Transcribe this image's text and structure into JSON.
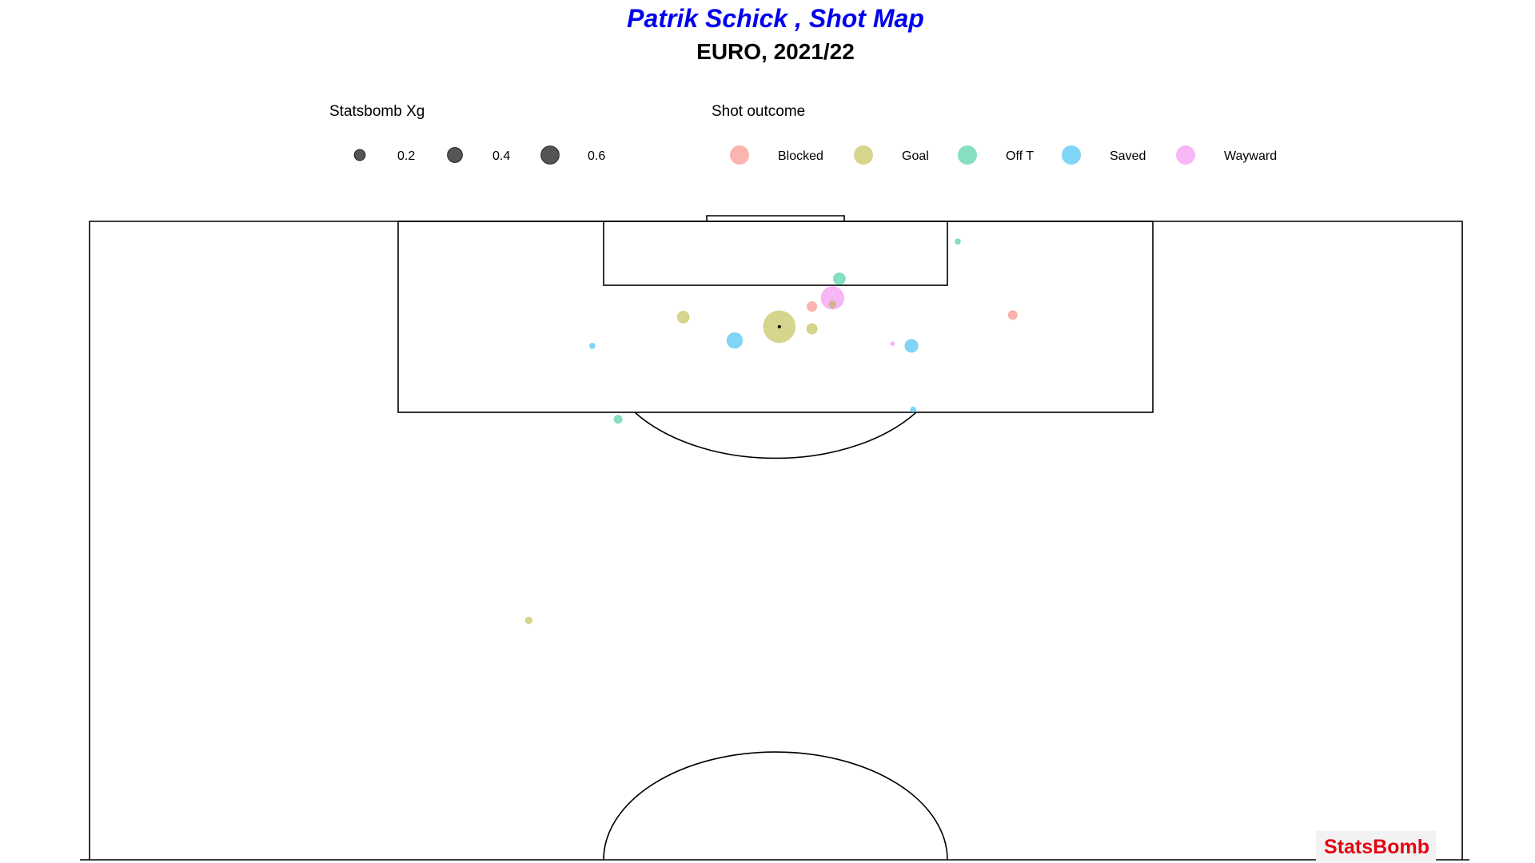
{
  "colors": {
    "title": "#0000ee",
    "brand": "#e30613",
    "size_legend": "#555555",
    "Blocked": "#f8766d",
    "Goal": "#b5b330",
    "Off T": "#23c48a",
    "Saved": "#1ab3f0",
    "Wayward": "#f07cf0"
  },
  "chart_data": {
    "type": "scatter",
    "title": "Patrik Schick , Shot Map",
    "subtitle": "EURO, 2021/22",
    "legend_size": {
      "title": "Statsbomb Xg",
      "entries": [
        {
          "value": 0.2,
          "label": "0.2"
        },
        {
          "value": 0.4,
          "label": "0.4"
        },
        {
          "value": 0.6,
          "label": "0.6"
        }
      ]
    },
    "legend_color": {
      "title": "Shot outcome",
      "entries": [
        "Blocked",
        "Goal",
        "Off T",
        "Saved",
        "Wayward"
      ]
    },
    "pitch": {
      "width": 80,
      "length_shown": 60,
      "goal_line_x": 120,
      "orientation": "vertical, attacking upward"
    },
    "shots": [
      {
        "x": 118.1,
        "y": 50.6,
        "xg": 0.01,
        "outcome": "Off T"
      },
      {
        "x": 114.6,
        "y": 43.7,
        "xg": 0.08,
        "outcome": "Off T"
      },
      {
        "x": 112.8,
        "y": 43.3,
        "xg": 0.35,
        "outcome": "Wayward"
      },
      {
        "x": 112.2,
        "y": 43.3,
        "xg": 0.02,
        "outcome": "Goal"
      },
      {
        "x": 112.0,
        "y": 42.1,
        "xg": 0.05,
        "outcome": "Blocked"
      },
      {
        "x": 111.2,
        "y": 53.8,
        "xg": 0.04,
        "outcome": "Blocked"
      },
      {
        "x": 111.0,
        "y": 34.6,
        "xg": 0.08,
        "outcome": "Goal"
      },
      {
        "x": 110.1,
        "y": 40.2,
        "xg": 0.72,
        "outcome": "Goal"
      },
      {
        "x": 109.9,
        "y": 42.1,
        "xg": 0.06,
        "outcome": "Goal"
      },
      {
        "x": 108.8,
        "y": 37.6,
        "xg": 0.15,
        "outcome": "Saved"
      },
      {
        "x": 108.3,
        "y": 47.9,
        "xg": 0.1,
        "outcome": "Saved"
      },
      {
        "x": 108.3,
        "y": 29.3,
        "xg": 0.01,
        "outcome": "Saved"
      },
      {
        "x": 108.5,
        "y": 46.8,
        "xg": 0.003,
        "outcome": "Wayward"
      },
      {
        "x": 102.3,
        "y": 48.0,
        "xg": 0.01,
        "outcome": "Saved"
      },
      {
        "x": 101.4,
        "y": 30.8,
        "xg": 0.03,
        "outcome": "Off T"
      },
      {
        "x": 82.5,
        "y": 25.6,
        "xg": 0.02,
        "outcome": "Goal"
      }
    ]
  },
  "brand_text": "StatsBomb"
}
